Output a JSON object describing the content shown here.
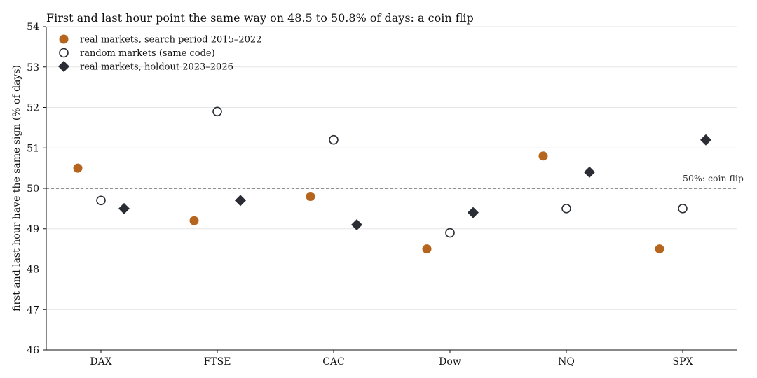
{
  "chart_data": {
    "type": "scatter",
    "title": "First and last hour point the same way on 48.5 to 50.8% of days: a coin flip",
    "xlabel": "",
    "ylabel": "first and last hour have the same sign (% of days)",
    "categories": [
      "DAX",
      "FTSE",
      "CAC",
      "Dow",
      "NQ",
      "SPX"
    ],
    "ylim": [
      46,
      54
    ],
    "yticks": [
      46,
      47,
      48,
      49,
      50,
      51,
      52,
      53,
      54
    ],
    "grid": "horizontal",
    "legend_position": "top-left",
    "reference_line": {
      "value": 50,
      "label": "50%: coin flip"
    },
    "series": [
      {
        "name": "real markets, search period 2015–2022",
        "marker": "filled-circle",
        "color": "#b5651d",
        "values": [
          50.5,
          49.2,
          49.8,
          48.5,
          50.8,
          48.5
        ]
      },
      {
        "name": "random markets (same code)",
        "marker": "open-circle",
        "color": "#2a2d33",
        "values": [
          49.7,
          51.9,
          51.2,
          48.9,
          49.5,
          49.5
        ]
      },
      {
        "name": "real markets, holdout 2023–2026",
        "marker": "diamond",
        "color": "#2a2d33",
        "values": [
          49.5,
          49.7,
          49.1,
          49.4,
          50.4,
          51.2
        ]
      }
    ]
  }
}
